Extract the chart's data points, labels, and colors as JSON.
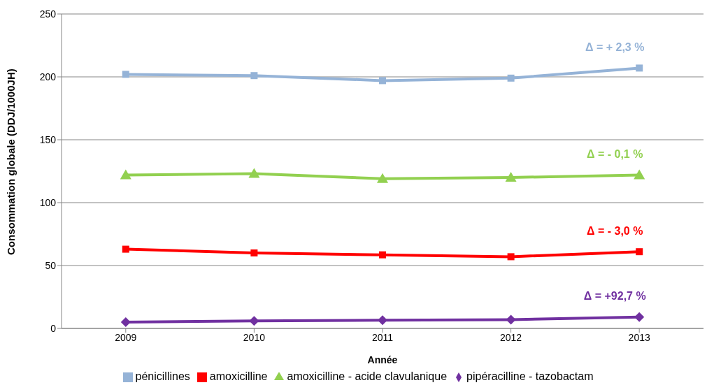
{
  "chart_data": {
    "type": "line",
    "xlabel": "Année",
    "ylabel": "Consommation globale (DDJ/1000JH)",
    "categories": [
      "2009",
      "2010",
      "2011",
      "2012",
      "2013"
    ],
    "series": [
      {
        "name": "pénicillines",
        "color": "#95b3d7",
        "marker": "square",
        "values": [
          202,
          201,
          197,
          199,
          207
        ]
      },
      {
        "name": "amoxicilline",
        "color": "#ff0000",
        "marker": "square",
        "values": [
          63,
          60,
          58.5,
          57,
          61
        ]
      },
      {
        "name": "amoxicilline - acide clavulanique",
        "color": "#92d050",
        "marker": "triangle",
        "values": [
          122,
          123,
          119,
          120,
          122
        ]
      },
      {
        "name": "pipéracilline - tazobactam",
        "color": "#7030a0",
        "marker": "diamond",
        "values": [
          5,
          6,
          6.5,
          7,
          9
        ]
      }
    ],
    "annotations": [
      "Δ = + 2,3 %",
      "Δ =  - 3,0 %",
      "Δ = - 0,1 %",
      "Δ =  +92,7 %"
    ],
    "ylim": [
      0,
      250
    ],
    "yticks": [
      0,
      50,
      100,
      150,
      200,
      250
    ],
    "grid": "y",
    "legend": "bottom",
    "line_style": "solid"
  }
}
